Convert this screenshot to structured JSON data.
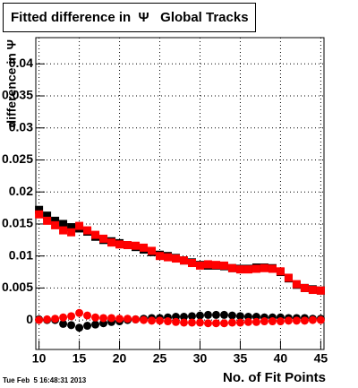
{
  "chart_data": {
    "type": "scatter",
    "title": "Fitted difference in  Ψ   Global Tracks",
    "x_label": "No. of Fit Points",
    "y_label": "difference in Ψ",
    "footer": "Tue Feb  5 16:48:31 2013",
    "x": [
      10,
      11,
      12,
      13,
      14,
      15,
      16,
      17,
      18,
      19,
      20,
      21,
      22,
      23,
      24,
      25,
      26,
      27,
      28,
      29,
      30,
      31,
      32,
      33,
      34,
      35,
      36,
      37,
      38,
      39,
      40,
      41,
      42,
      43,
      44,
      45
    ],
    "series": [
      {
        "color": "#000000",
        "marker": "square",
        "values": [
          0.0172,
          0.0163,
          0.0155,
          0.015,
          0.0145,
          0.0143,
          0.0138,
          0.013,
          0.0125,
          0.0123,
          0.012,
          0.0117,
          0.0114,
          0.011,
          0.0106,
          0.0102,
          0.01,
          0.0097,
          0.0093,
          0.009,
          0.0086,
          0.0085,
          0.0085,
          0.0084,
          0.0081,
          0.008,
          0.008,
          0.0082,
          0.0082,
          0.0081,
          0.0075,
          0.0065,
          0.0055,
          0.005,
          0.0048,
          0.0046
        ]
      },
      {
        "color": "#ff0000",
        "marker": "square",
        "values": [
          0.0165,
          0.0155,
          0.0148,
          0.014,
          0.0137,
          0.0147,
          0.014,
          0.0133,
          0.0127,
          0.0121,
          0.0118,
          0.0117,
          0.0116,
          0.0113,
          0.0108,
          0.01,
          0.0098,
          0.0096,
          0.0093,
          0.0089,
          0.0085,
          0.0087,
          0.0086,
          0.0085,
          0.0081,
          0.0079,
          0.0079,
          0.008,
          0.0081,
          0.008,
          0.0076,
          0.0066,
          0.0056,
          0.005,
          0.0047,
          0.0046
        ]
      },
      {
        "color": "#000000",
        "marker": "circle",
        "values": [
          0.0001,
          0,
          0,
          -0.0006,
          -0.0008,
          -0.0012,
          -0.0009,
          -0.0007,
          -0.0005,
          -0.0003,
          -0.0002,
          0,
          0.0001,
          0.0002,
          0.0003,
          0.0003,
          0.0004,
          0.0005,
          0.0005,
          0.0006,
          0.0007,
          0.0008,
          0.0008,
          0.0008,
          0.0007,
          0.0006,
          0.0005,
          0.0005,
          0.0004,
          0.0004,
          0.0004,
          0.0003,
          0.0003,
          0.0003,
          0.0002,
          0.0002
        ]
      },
      {
        "color": "#ff0000",
        "marker": "circle",
        "values": [
          0,
          0.0001,
          0.0002,
          0.0004,
          0.0006,
          0.0011,
          0.0007,
          0.0004,
          0.0003,
          0.0003,
          0.0002,
          0.0002,
          0.0001,
          0,
          -0.0001,
          -0.0001,
          -0.0002,
          -0.0003,
          -0.0004,
          -0.0004,
          -0.0004,
          -0.0005,
          -0.0005,
          -0.0005,
          -0.0004,
          -0.0004,
          -0.0003,
          -0.0003,
          -0.0002,
          -0.0002,
          -0.0002,
          -0.0001,
          -0.0001,
          -0.0001,
          0,
          0
        ]
      }
    ],
    "xlim": [
      9.6,
      45.4
    ],
    "ylim": [
      -0.0046,
      0.0441
    ],
    "xticks": [
      10,
      15,
      20,
      25,
      30,
      35,
      40,
      45
    ],
    "yticks": [
      0,
      0.005,
      0.01,
      0.015,
      0.02,
      0.025,
      0.03,
      0.035,
      0.04
    ],
    "grid": true
  }
}
